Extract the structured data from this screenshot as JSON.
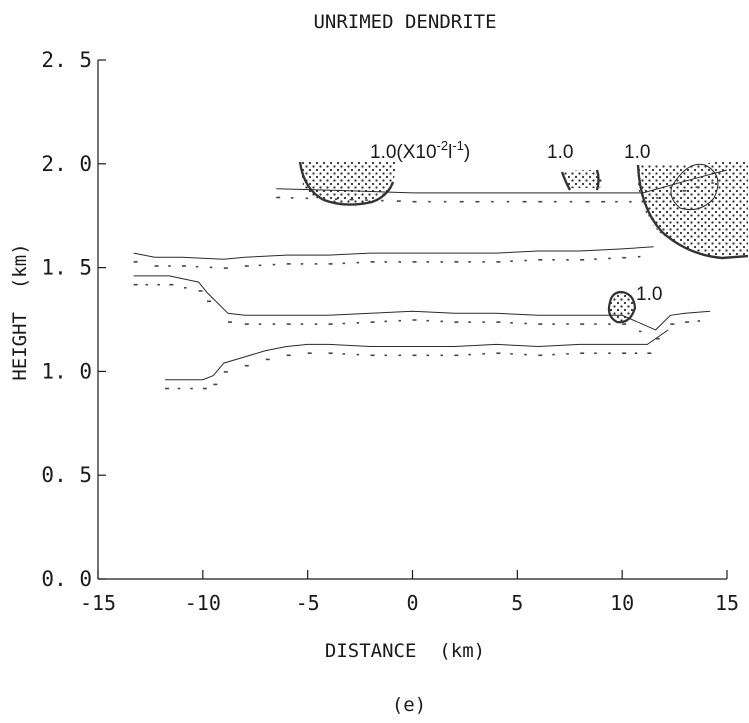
{
  "chart_data": {
    "type": "line",
    "title": "UNRIMED DENDRITE",
    "xlabel": "DISTANCE  (km)",
    "ylabel": "HEIGHT  (km)",
    "panel_label": "(e)",
    "xlim": [
      -15,
      15
    ],
    "ylim": [
      0,
      2.5
    ],
    "xticks": [
      "-15",
      "-10",
      "-5",
      "0",
      "5",
      "10",
      "15"
    ],
    "yticks": [
      "0. 0",
      "0. 5",
      "1. 0",
      "1. 5",
      "2. 0",
      "2. 5"
    ],
    "grid": false,
    "series": [
      {
        "x": [
          -6.5,
          -3,
          0,
          3,
          6,
          9,
          11,
          13.5,
          15
        ],
        "y": [
          1.88,
          1.87,
          1.86,
          1.86,
          1.86,
          1.86,
          1.86,
          1.93,
          1.97
        ]
      },
      {
        "x": [
          -13.3,
          -12.3,
          -11,
          -9,
          -8,
          -6,
          -4,
          -2,
          0,
          2,
          4,
          6,
          8,
          10,
          11.5
        ],
        "y": [
          1.57,
          1.55,
          1.55,
          1.54,
          1.55,
          1.56,
          1.56,
          1.57,
          1.57,
          1.57,
          1.57,
          1.58,
          1.58,
          1.59,
          1.6
        ]
      },
      {
        "x": [
          -13.3,
          -11.6,
          -10.2,
          -9.8,
          -8.8,
          -8,
          -6,
          -4,
          -2,
          0,
          2,
          4,
          6,
          8,
          10,
          11.6,
          12.3,
          13,
          14.2
        ],
        "y": [
          1.46,
          1.46,
          1.43,
          1.38,
          1.28,
          1.27,
          1.27,
          1.27,
          1.28,
          1.29,
          1.28,
          1.28,
          1.27,
          1.27,
          1.27,
          1.2,
          1.27,
          1.28,
          1.29
        ]
      },
      {
        "x": [
          -11.8,
          -10,
          -9.5,
          -9,
          -8,
          -7,
          -6,
          -5,
          -4,
          -2,
          0,
          2,
          4,
          6,
          8,
          10,
          11.2,
          12.2
        ],
        "y": [
          0.96,
          0.96,
          0.98,
          1.04,
          1.07,
          1.1,
          1.12,
          1.13,
          1.13,
          1.12,
          1.12,
          1.12,
          1.13,
          1.12,
          1.13,
          1.13,
          1.13,
          1.2
        ]
      }
    ],
    "contour_labels": [
      "1.0(X10^-2 l^-1)",
      "1.0",
      "1.0",
      "1.0"
    ],
    "hatch_color": "#333333"
  }
}
